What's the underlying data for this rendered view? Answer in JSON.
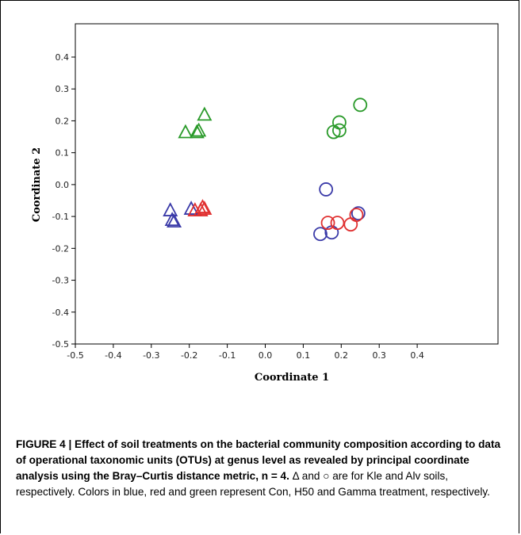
{
  "chart_data": {
    "type": "scatter",
    "xlabel": "Coordinate 1",
    "ylabel": "Coordinate 2",
    "xlim": [
      -0.5,
      0.5
    ],
    "ylim": [
      -0.5,
      0.4
    ],
    "x_ticks": [
      "-0.5",
      "-0.4",
      "-0.3",
      "-0.2",
      "-0.1",
      "0.0",
      "0.1",
      "0.2",
      "0.3",
      "0.4"
    ],
    "y_ticks": [
      "0.4",
      "0.3",
      "0.2",
      "0.1",
      "0.0",
      "-0.1",
      "-0.2",
      "-0.3",
      "-0.4",
      "-0.5"
    ],
    "grid": false,
    "series": [
      {
        "color": "#3a3aa8",
        "marker": "triangle",
        "points": [
          [
            -0.25,
            -0.08
          ],
          [
            -0.245,
            -0.11
          ],
          [
            -0.24,
            -0.115
          ],
          [
            -0.195,
            -0.075
          ]
        ]
      },
      {
        "color": "#e03030",
        "marker": "triangle",
        "points": [
          [
            -0.185,
            -0.08
          ],
          [
            -0.17,
            -0.08
          ],
          [
            -0.16,
            -0.075
          ],
          [
            -0.165,
            -0.07
          ]
        ]
      },
      {
        "color": "#2a9a2a",
        "marker": "triangle",
        "points": [
          [
            -0.21,
            0.165
          ],
          [
            -0.18,
            0.165
          ],
          [
            -0.175,
            0.17
          ],
          [
            -0.16,
            0.22
          ]
        ]
      },
      {
        "color": "#3a3aa8",
        "marker": "circle",
        "points": [
          [
            0.16,
            -0.015
          ],
          [
            0.145,
            -0.155
          ],
          [
            0.175,
            -0.15
          ],
          [
            0.245,
            -0.09
          ]
        ]
      },
      {
        "color": "#e03030",
        "marker": "circle",
        "points": [
          [
            0.165,
            -0.12
          ],
          [
            0.19,
            -0.12
          ],
          [
            0.225,
            -0.125
          ],
          [
            0.24,
            -0.095
          ]
        ]
      },
      {
        "color": "#2a9a2a",
        "marker": "circle",
        "points": [
          [
            0.18,
            0.165
          ],
          [
            0.195,
            0.17
          ],
          [
            0.195,
            0.195
          ],
          [
            0.25,
            0.25
          ]
        ]
      }
    ]
  },
  "caption": {
    "bold": "FIGURE 4 | Effect of soil treatments on the bacterial community composition according to data of operational taxonomic units (OTUs) at genus level as revealed by principal coordinate analysis using the Bray–Curtis distance metric, n = 4.",
    "normal": " Δ and ○ are for Kle and Alv soils, respectively. Colors in blue, red and green represent Con, H50 and Gamma treatment, respectively."
  }
}
